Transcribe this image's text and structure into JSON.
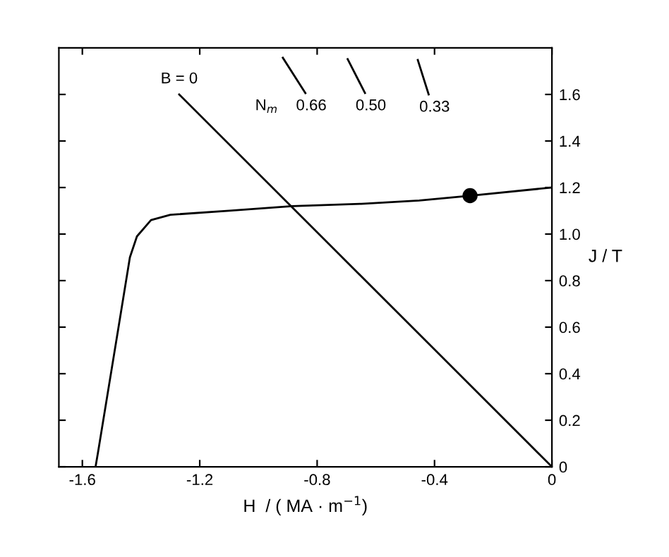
{
  "chart_data": {
    "type": "line",
    "xlabel": "H  / ( MA · m$^{−1}$)",
    "ylabel": "J / T",
    "series": [
      {
        "color": "#000000",
        "x": [
          -1.555,
          -1.546,
          -1.478,
          -1.438,
          -1.414,
          -1.366,
          -1.3,
          -1.1,
          -0.885,
          -0.65,
          -0.452,
          -0.279,
          0
        ],
        "values": [
          0,
          0.067,
          0.59,
          0.9,
          0.99,
          1.06,
          1.083,
          1.1,
          1.12,
          1.13,
          1.144,
          1.165,
          1.2
        ]
      },
      {
        "color": "#000000",
        "x": [
          -1.27,
          0
        ],
        "values": [
          1.6,
          0
        ]
      },
      {
        "color": "#000000",
        "x": [
          -0.917,
          -0.84
        ],
        "values": [
          1.758,
          1.606
        ]
      },
      {
        "color": "#000000",
        "x": [
          -0.696,
          -0.637
        ],
        "values": [
          1.752,
          1.606
        ]
      },
      {
        "color": "#000000",
        "x": [
          -0.457,
          -0.42
        ],
        "values": [
          1.748,
          1.6
        ]
      },
      {
        "type": "scatter",
        "color": "#000000",
        "marker": "circle",
        "x": [
          -0.279
        ],
        "values": [
          1.165
        ]
      }
    ],
    "annotations": [
      {
        "text": "B = 0",
        "x": -1.27,
        "y": 1.6
      },
      "N$_{m}$",
      "0.66",
      "0.50",
      "0.33"
    ],
    "xlim": [
      -1.68,
      0
    ],
    "ylim": [
      0,
      1.8
    ],
    "xticks": [
      -1.6,
      -1.2,
      -0.8,
      -0.4,
      0
    ],
    "yticks": [
      0,
      0.2,
      0.4,
      0.6,
      0.8,
      {
        "value": 1.0,
        "label": "1.0"
      },
      1.2,
      1.4,
      1.6
    ],
    "grid": false,
    "legend": false
  }
}
